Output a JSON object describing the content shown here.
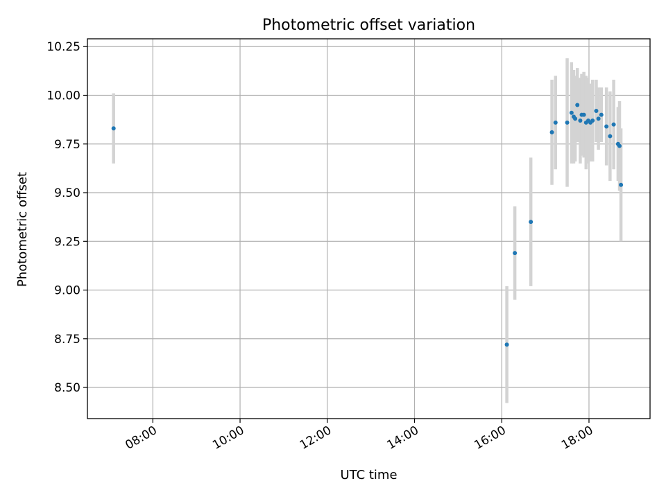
{
  "chart_data": {
    "type": "scatter",
    "title": "Photometric offset variation",
    "xlabel": "UTC time",
    "ylabel": "Photometric offset",
    "x_format": "HH:MM",
    "xlim": [
      "06:30",
      "19:24"
    ],
    "ylim": [
      8.34,
      10.29
    ],
    "xticks": [
      "08:00",
      "10:00",
      "12:00",
      "14:00",
      "16:00",
      "18:00"
    ],
    "yticks": [
      "8.50",
      "8.75",
      "9.00",
      "9.25",
      "9.50",
      "9.75",
      "10.00",
      "10.25"
    ],
    "grid": true,
    "colors": {
      "points": "#1f77b4",
      "errorbars": "#d3d3d3",
      "grid": "#b0b0b0",
      "axes": "#000000"
    },
    "points": [
      {
        "x": "07:06",
        "y": 9.83,
        "err": 0.18
      },
      {
        "x": "16:07",
        "y": 8.72,
        "err": 0.3
      },
      {
        "x": "16:18",
        "y": 9.19,
        "err": 0.24
      },
      {
        "x": "16:40",
        "y": 9.35,
        "err": 0.33
      },
      {
        "x": "17:09",
        "y": 9.81,
        "err": 0.27
      },
      {
        "x": "17:14",
        "y": 9.86,
        "err": 0.24
      },
      {
        "x": "17:30",
        "y": 9.86,
        "err": 0.33
      },
      {
        "x": "17:36",
        "y": 9.91,
        "err": 0.26
      },
      {
        "x": "17:39",
        "y": 9.89,
        "err": 0.24
      },
      {
        "x": "17:41",
        "y": 9.88,
        "err": 0.22
      },
      {
        "x": "17:44",
        "y": 9.95,
        "err": 0.19
      },
      {
        "x": "17:48",
        "y": 9.87,
        "err": 0.22
      },
      {
        "x": "17:50",
        "y": 9.9,
        "err": 0.21
      },
      {
        "x": "17:53",
        "y": 9.9,
        "err": 0.22
      },
      {
        "x": "17:56",
        "y": 9.86,
        "err": 0.24
      },
      {
        "x": "17:59",
        "y": 9.87,
        "err": 0.22
      },
      {
        "x": "18:02",
        "y": 9.86,
        "err": 0.2
      },
      {
        "x": "18:05",
        "y": 9.87,
        "err": 0.21
      },
      {
        "x": "18:10",
        "y": 9.92,
        "err": 0.16
      },
      {
        "x": "18:13",
        "y": 9.88,
        "err": 0.16
      },
      {
        "x": "18:17",
        "y": 9.9,
        "err": 0.14
      },
      {
        "x": "18:24",
        "y": 9.84,
        "err": 0.2
      },
      {
        "x": "18:29",
        "y": 9.79,
        "err": 0.23
      },
      {
        "x": "18:34",
        "y": 9.85,
        "err": 0.23
      },
      {
        "x": "18:40",
        "y": 9.75,
        "err": 0.19
      },
      {
        "x": "18:42",
        "y": 9.74,
        "err": 0.23
      },
      {
        "x": "18:44",
        "y": 9.54,
        "err": 0.29
      }
    ]
  }
}
